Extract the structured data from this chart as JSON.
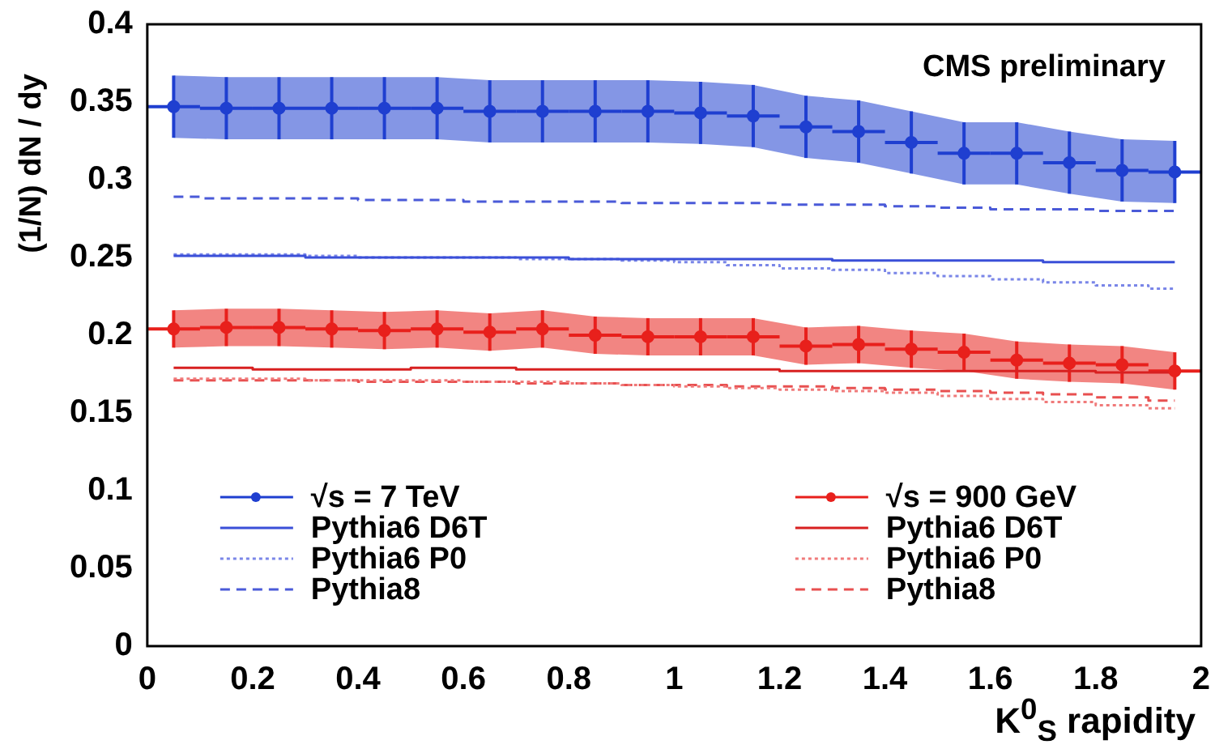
{
  "chart_data": {
    "type": "step",
    "xlabel": "K$^{0}$$_{S}$ rapidity",
    "ylabel": "(1/N) dN / dy",
    "annotations": [
      "CMS preliminary"
    ],
    "x": [
      0.05,
      0.15,
      0.25,
      0.35,
      0.45,
      0.55,
      0.65,
      0.75,
      0.85,
      0.95,
      1.05,
      1.15,
      1.25,
      1.35,
      1.45,
      1.55,
      1.65,
      1.75,
      1.85,
      1.95
    ],
    "series": [
      {
        "name": "√s = 7 TeV",
        "type": "scatter",
        "color": "#1f3fd0",
        "marker": "circle",
        "values": [
          0.347,
          0.346,
          0.346,
          0.346,
          0.346,
          0.346,
          0.344,
          0.344,
          0.344,
          0.344,
          0.343,
          0.341,
          0.334,
          0.331,
          0.324,
          0.317,
          0.317,
          0.311,
          0.306,
          0.305
        ],
        "errors": [
          0.02,
          0.02,
          0.02,
          0.02,
          0.02,
          0.02,
          0.02,
          0.02,
          0.02,
          0.02,
          0.02,
          0.02,
          0.02,
          0.02,
          0.02,
          0.02,
          0.02,
          0.02,
          0.02,
          0.02
        ],
        "xerrors": [
          0.05,
          0.05,
          0.05,
          0.05,
          0.05,
          0.05,
          0.05,
          0.05,
          0.05,
          0.05,
          0.05,
          0.05,
          0.05,
          0.05,
          0.05,
          0.05,
          0.05,
          0.05,
          0.05,
          0.05
        ],
        "lower": [
          0.327,
          0.326,
          0.326,
          0.326,
          0.326,
          0.326,
          0.324,
          0.324,
          0.324,
          0.324,
          0.323,
          0.321,
          0.314,
          0.311,
          0.304,
          0.297,
          0.297,
          0.291,
          0.286,
          0.285
        ],
        "upper": [
          0.367,
          0.366,
          0.366,
          0.366,
          0.366,
          0.366,
          0.364,
          0.364,
          0.364,
          0.364,
          0.363,
          0.361,
          0.354,
          0.351,
          0.344,
          0.337,
          0.337,
          0.331,
          0.326,
          0.325
        ]
      },
      {
        "name": "Pythia6 D6T",
        "color": "#3a4fd8",
        "line_style": "solid",
        "values": [
          0.251,
          0.251,
          0.251,
          0.25,
          0.25,
          0.25,
          0.25,
          0.25,
          0.249,
          0.249,
          0.249,
          0.249,
          0.249,
          0.248,
          0.248,
          0.248,
          0.248,
          0.247,
          0.247,
          0.247
        ]
      },
      {
        "name": "Pythia6 P0",
        "color": "#7a86e8",
        "line_style": "dotted",
        "values": [
          0.252,
          0.252,
          0.252,
          0.251,
          0.25,
          0.25,
          0.25,
          0.249,
          0.249,
          0.248,
          0.247,
          0.245,
          0.243,
          0.242,
          0.24,
          0.238,
          0.236,
          0.234,
          0.232,
          0.23
        ]
      },
      {
        "name": "Pythia8",
        "color": "#4a5ad8",
        "line_style": "dashed",
        "values": [
          0.289,
          0.288,
          0.288,
          0.288,
          0.287,
          0.287,
          0.286,
          0.286,
          0.286,
          0.285,
          0.285,
          0.285,
          0.284,
          0.284,
          0.283,
          0.282,
          0.281,
          0.281,
          0.28,
          0.28
        ]
      },
      {
        "name": "√s = 900 GeV",
        "type": "scatter",
        "color": "#e8201c",
        "marker": "circle",
        "values": [
          0.204,
          0.205,
          0.205,
          0.204,
          0.203,
          0.204,
          0.202,
          0.204,
          0.2,
          0.199,
          0.199,
          0.199,
          0.193,
          0.194,
          0.191,
          0.189,
          0.184,
          0.182,
          0.181,
          0.177
        ],
        "errors": [
          0.012,
          0.012,
          0.012,
          0.012,
          0.012,
          0.012,
          0.012,
          0.012,
          0.012,
          0.012,
          0.012,
          0.012,
          0.012,
          0.012,
          0.012,
          0.012,
          0.012,
          0.012,
          0.012,
          0.012
        ],
        "xerrors": [
          0.05,
          0.05,
          0.05,
          0.05,
          0.05,
          0.05,
          0.05,
          0.05,
          0.05,
          0.05,
          0.05,
          0.05,
          0.05,
          0.05,
          0.05,
          0.05,
          0.05,
          0.05,
          0.05,
          0.05
        ],
        "lower": [
          0.192,
          0.193,
          0.193,
          0.192,
          0.191,
          0.192,
          0.19,
          0.192,
          0.188,
          0.187,
          0.187,
          0.187,
          0.181,
          0.182,
          0.179,
          0.177,
          0.172,
          0.17,
          0.169,
          0.165
        ],
        "upper": [
          0.216,
          0.217,
          0.217,
          0.216,
          0.215,
          0.216,
          0.214,
          0.216,
          0.212,
          0.211,
          0.211,
          0.211,
          0.205,
          0.206,
          0.203,
          0.201,
          0.196,
          0.194,
          0.193,
          0.189
        ]
      },
      {
        "name": "Pythia6 D6T",
        "color": "#d82020",
        "line_style": "solid",
        "values": [
          0.179,
          0.179,
          0.178,
          0.178,
          0.178,
          0.179,
          0.179,
          0.178,
          0.178,
          0.178,
          0.178,
          0.178,
          0.177,
          0.177,
          0.177,
          0.177,
          0.177,
          0.177,
          0.176,
          0.176
        ]
      },
      {
        "name": "Pythia6 P0",
        "color": "#f07a7a",
        "line_style": "dotted",
        "values": [
          0.172,
          0.172,
          0.172,
          0.171,
          0.171,
          0.171,
          0.17,
          0.17,
          0.169,
          0.168,
          0.167,
          0.166,
          0.165,
          0.164,
          0.163,
          0.161,
          0.159,
          0.157,
          0.155,
          0.153
        ]
      },
      {
        "name": "Pythia8",
        "color": "#e85050",
        "line_style": "dashed",
        "values": [
          0.171,
          0.171,
          0.171,
          0.171,
          0.17,
          0.17,
          0.17,
          0.169,
          0.169,
          0.168,
          0.168,
          0.167,
          0.167,
          0.166,
          0.165,
          0.164,
          0.163,
          0.162,
          0.16,
          0.158
        ]
      }
    ],
    "xlim": [
      0,
      2
    ],
    "xticks": [
      0,
      0.2,
      0.4,
      0.6,
      0.8,
      1,
      1.2,
      1.4,
      1.6,
      1.8,
      2
    ],
    "ylim": [
      0,
      0.4
    ],
    "yticks": [
      0,
      0.05,
      0.1,
      0.15,
      0.2,
      0.25,
      0.3,
      0.35,
      0.4
    ],
    "grid": false,
    "legend": "bottom"
  }
}
